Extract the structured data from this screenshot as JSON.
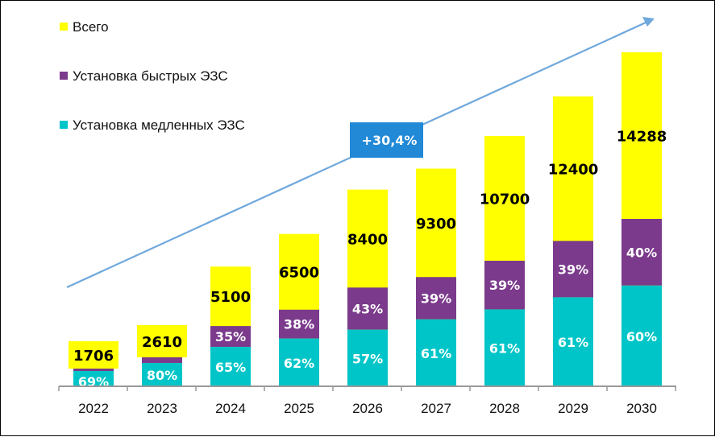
{
  "chart_data": {
    "type": "bar",
    "stacked": true,
    "title": "",
    "xlabel": "",
    "ylabel": "",
    "categories": [
      "2022",
      "2023",
      "2024",
      "2025",
      "2026",
      "2027",
      "2028",
      "2029",
      "2030"
    ],
    "totals": [
      1706,
      2610,
      5100,
      6500,
      8400,
      9300,
      10700,
      12400,
      14288
    ],
    "series": [
      {
        "name": "Установка медленных ЭЗС",
        "color": "#00C5C8",
        "share_pct": [
          69,
          80,
          65,
          62,
          57,
          61,
          61,
          61,
          60
        ]
      },
      {
        "name": "Установка быстрых ЭЗС",
        "color": "#7B3A8C",
        "share_pct": [
          31,
          20,
          35,
          38,
          43,
          39,
          39,
          39,
          40
        ]
      },
      {
        "name": "Всего",
        "color": "#FFFF00"
      }
    ],
    "hidden_pct_labels": {
      "fast": [
        0,
        1
      ]
    },
    "legend": {
      "position": "top-left",
      "entries": [
        "Всего",
        "Установка быстрых ЭЗС",
        "Установка медленных ЭЗС"
      ]
    },
    "annotation": {
      "text": "+30,4%",
      "color": "#2189D6",
      "meaning": "growth trend arrow"
    },
    "ylim": [
      0,
      15000
    ],
    "grid": false
  }
}
